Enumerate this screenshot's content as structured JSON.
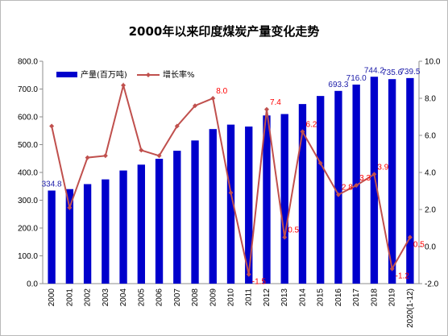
{
  "chart_data": {
    "type": "bar+line",
    "title": "2000年以来印度煤炭产量变化走势",
    "categories": [
      "2000",
      "2001",
      "2002",
      "2003",
      "2004",
      "2005",
      "2006",
      "2007",
      "2008",
      "2009",
      "2010",
      "2011",
      "2012",
      "2013",
      "2014",
      "2015",
      "2016",
      "2017",
      "2018",
      "2019",
      "2020(1-12)"
    ],
    "series": [
      {
        "name": "产量(百万吨)",
        "type": "bar",
        "axis": "left",
        "color": "#0000cc",
        "values": [
          334.8,
          340,
          358,
          375,
          407,
          428,
          449,
          478,
          515,
          556,
          572,
          565,
          605,
          610,
          646,
          675,
          693.3,
          716.0,
          744.2,
          735.6,
          739.5
        ]
      },
      {
        "name": "增长率%",
        "type": "line",
        "axis": "right",
        "color": "#c0504d",
        "values": [
          6.5,
          2.1,
          4.8,
          4.9,
          8.7,
          5.2,
          4.9,
          6.5,
          7.6,
          8.0,
          2.9,
          -1.5,
          7.4,
          0.5,
          6.2,
          4.5,
          2.8,
          3.3,
          3.9,
          -1.2,
          0.5
        ]
      }
    ],
    "y_left": {
      "min": 0,
      "max": 800,
      "step": 100,
      "tick_labels": [
        "0.0",
        "100.0",
        "200.0",
        "300.0",
        "400.0",
        "500.0",
        "600.0",
        "700.0",
        "800.0"
      ]
    },
    "y_right": {
      "min": -2,
      "max": 10,
      "step": 2,
      "tick_labels": [
        "-2.0",
        "0.0",
        "2.0",
        "4.0",
        "6.0",
        "8.0",
        "10.0"
      ]
    },
    "bar_data_labels": [
      {
        "index": 0,
        "text": "334.8"
      },
      {
        "index": 16,
        "text": "693.3"
      },
      {
        "index": 17,
        "text": "716.0"
      },
      {
        "index": 18,
        "text": "744.2"
      },
      {
        "index": 19,
        "text": "735.6"
      },
      {
        "index": 20,
        "text": "739.5"
      }
    ],
    "line_data_labels": [
      {
        "index": 9,
        "text": "8.0"
      },
      {
        "index": 11,
        "text": "-1.5"
      },
      {
        "index": 12,
        "text": "7.4"
      },
      {
        "index": 13,
        "text": "0.5"
      },
      {
        "index": 14,
        "text": "6.2"
      },
      {
        "index": 16,
        "text": "2.8"
      },
      {
        "index": 17,
        "text": "3.3"
      },
      {
        "index": 18,
        "text": "3.9"
      },
      {
        "index": 19,
        "text": "-1.2"
      },
      {
        "index": 20,
        "text": "0.5"
      }
    ],
    "legend": {
      "placement": "top-left"
    },
    "grid": false
  }
}
